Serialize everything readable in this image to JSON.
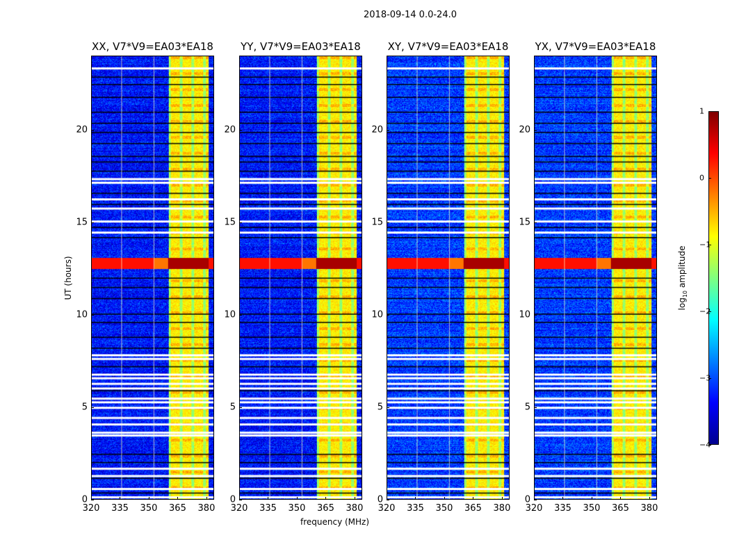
{
  "title": "2018-09-14 0.0-24.0",
  "chart_data": {
    "type": "heatmap",
    "panels": [
      {
        "title": "XX, V7*V9=EA03*EA18"
      },
      {
        "title": "YY, V7*V9=EA03*EA18"
      },
      {
        "title": "XY, V7*V9=EA03*EA18"
      },
      {
        "title": "YX, V7*V9=EA03*EA18"
      }
    ],
    "xlabel": "frequency (MHz)",
    "ylabel": "UT (hours)",
    "xlim": [
      320,
      384
    ],
    "ylim": [
      0,
      24
    ],
    "xticks": [
      "320",
      "335",
      "350",
      "365",
      "380"
    ],
    "xtick_values": [
      320,
      335,
      350,
      365,
      380
    ],
    "yticks": [
      "0",
      "5",
      "10",
      "15",
      "20"
    ],
    "ytick_values": [
      0,
      5,
      10,
      15,
      20
    ],
    "colorbar": {
      "label": "log10 amplitude",
      "label_main": "log",
      "label_sub": "10",
      "label_tail": " amplitude",
      "ticks": [
        "−4",
        "−3",
        "−2",
        "−1",
        "0",
        "1"
      ],
      "tick_values": [
        -4,
        -3,
        -2,
        -1,
        0,
        1
      ],
      "range": [
        -4,
        1
      ],
      "colormap": "jet"
    },
    "background_level": -3.3,
    "rfi_band_mhz": [
      360,
      380
    ],
    "rfi_level": -0.8,
    "strong_rfi_hours": [
      12.5,
      13.1
    ],
    "strong_rfi_level": 0.8,
    "flagged_hours": [
      0.15,
      0.6,
      1.3,
      1.7,
      3.5,
      3.65,
      4.1,
      4.45,
      5.0,
      5.3,
      5.5,
      6.05,
      6.3,
      6.6,
      6.8,
      7.65,
      7.85,
      14.5,
      15.1,
      15.8,
      16.3,
      17.2,
      17.4,
      23.4
    ],
    "dropout_hours": [
      0.35,
      0.55,
      1.15,
      2.0,
      2.45,
      5.9,
      7.2,
      8.2,
      8.8,
      9.6,
      10.05,
      10.9,
      11.5,
      12.0,
      14.2,
      14.75,
      16.0,
      16.6,
      17.8,
      18.3,
      18.6,
      19.3,
      19.9,
      20.4,
      21.0,
      21.8,
      22.5,
      22.9
    ]
  }
}
